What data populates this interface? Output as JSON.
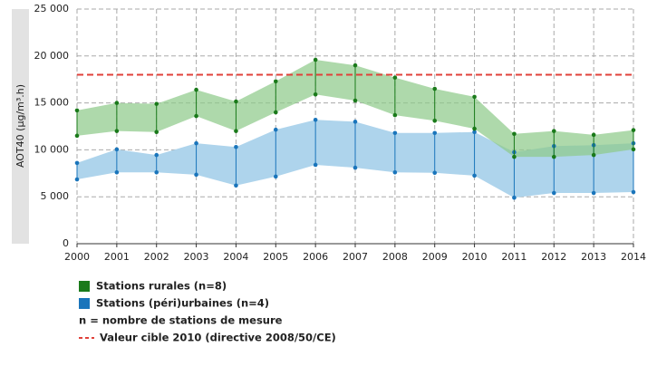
{
  "chart_data": {
    "type": "range",
    "y_label": "AOT40 (µg/m³.h)",
    "categories": [
      "2000",
      "2001",
      "2002",
      "2003",
      "2004",
      "2005",
      "2006",
      "2007",
      "2008",
      "2009",
      "2010",
      "2011",
      "2012",
      "2013",
      "2014"
    ],
    "series": [
      {
        "name": "Stations (péri)urbaines (n=4)",
        "color": "#1a75bb",
        "fill": "#aed4ec",
        "low": [
          6850,
          7600,
          7600,
          7350,
          6200,
          7150,
          8400,
          8100,
          7600,
          7550,
          7250,
          4900,
          5400,
          5400,
          5500
        ],
        "high": [
          8600,
          10050,
          9450,
          10700,
          10300,
          12150,
          13200,
          13000,
          11800,
          11800,
          11900,
          9750,
          10400,
          10500,
          10700
        ]
      },
      {
        "name": "Stations rurales (n=8)",
        "color": "#1a7a1a",
        "fill": "#8fcb8a",
        "low": [
          11500,
          12000,
          11900,
          13600,
          12000,
          14000,
          15900,
          15250,
          13700,
          13100,
          12250,
          9250,
          9250,
          9450,
          10050
        ],
        "high": [
          14200,
          15000,
          14900,
          16400,
          15150,
          17300,
          19600,
          19000,
          17700,
          16500,
          15650,
          11700,
          12000,
          11600,
          12100
        ]
      }
    ],
    "reference_line": {
      "value": 18000,
      "label": "Valeur cible 2010 (directive 2008/50/CE)",
      "color": "#e0413a"
    },
    "note": "n = nombre de stations de mesure",
    "ylim": [
      0,
      25000
    ],
    "yticks": [
      0,
      {
        "value": 5000,
        "label": "5 000"
      },
      {
        "value": 10000,
        "label": "10 000"
      },
      {
        "value": 15000,
        "label": "15 000"
      },
      {
        "value": 20000,
        "label": "20 000"
      },
      {
        "value": 25000,
        "label": "25 000"
      }
    ],
    "grid": true
  }
}
